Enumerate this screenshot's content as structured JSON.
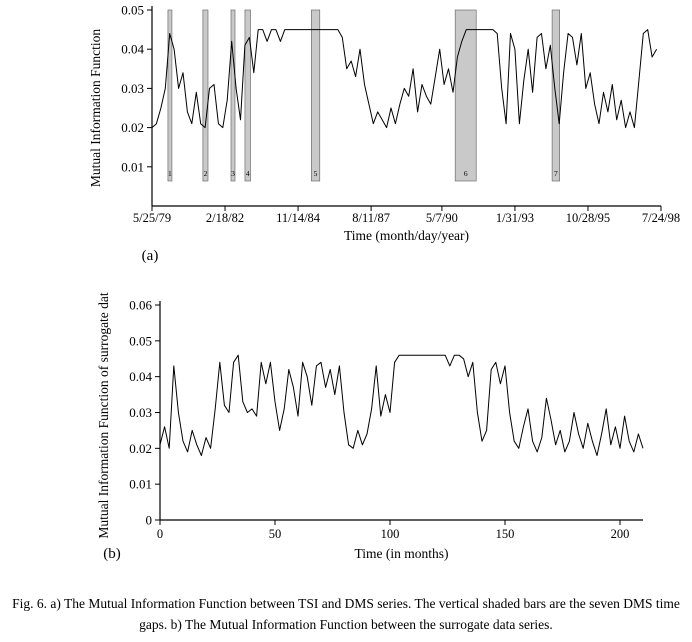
{
  "caption": {
    "text": "Fig. 6. a) The Mutual Information Function between TSI and DMS series. The vertical shaded bars are the seven DMS time gaps. b) The Mutual Information Function between the surrogate data series."
  },
  "chart_data": [
    {
      "type": "line",
      "panel_label": "(a)",
      "title": "",
      "ylabel": "Mutual Information Function",
      "xlabel": "Time (month/day/year)",
      "ylim": [
        0,
        0.05
      ],
      "xlim": [
        0,
        230
      ],
      "grid": false,
      "legend": "none",
      "line_color": "#000000",
      "bar_fill": "#c9c9c9",
      "bar_stroke": "#6e6e6e",
      "yticks": [
        0.01,
        0.02,
        0.03,
        0.04,
        0.05
      ],
      "ytick_labels": [
        "0.01",
        "0.02",
        "0.03",
        "0.04",
        "0.05"
      ],
      "xticks": [
        0,
        33,
        66,
        99,
        131,
        164,
        197,
        230
      ],
      "xtick_labels": [
        "5/25/79",
        "2/18/82",
        "11/14/84",
        "8/11/87",
        "5/7/90",
        "1/31/93",
        "10/28/95",
        "7/24/98"
      ],
      "x_start": 0,
      "x_step": 2,
      "values": [
        0.02,
        0.021,
        0.025,
        0.03,
        0.044,
        0.04,
        0.03,
        0.034,
        0.024,
        0.021,
        0.029,
        0.021,
        0.02,
        0.03,
        0.031,
        0.021,
        0.02,
        0.027,
        0.042,
        0.03,
        0.022,
        0.041,
        0.043,
        0.034,
        0.045,
        0.045,
        0.042,
        0.045,
        0.045,
        0.042,
        0.045,
        0.045,
        0.045,
        0.045,
        0.045,
        0.045,
        0.045,
        0.045,
        0.045,
        0.045,
        0.045,
        0.045,
        0.045,
        0.043,
        0.035,
        0.037,
        0.033,
        0.04,
        0.031,
        0.026,
        0.021,
        0.024,
        0.022,
        0.02,
        0.025,
        0.021,
        0.026,
        0.03,
        0.028,
        0.035,
        0.024,
        0.031,
        0.028,
        0.026,
        0.033,
        0.04,
        0.031,
        0.035,
        0.029,
        0.038,
        0.042,
        0.045,
        0.045,
        0.045,
        0.045,
        0.045,
        0.045,
        0.045,
        0.044,
        0.03,
        0.021,
        0.044,
        0.04,
        0.021,
        0.032,
        0.04,
        0.029,
        0.043,
        0.044,
        0.035,
        0.041,
        0.03,
        0.021,
        0.034,
        0.044,
        0.043,
        0.036,
        0.044,
        0.03,
        0.034,
        0.026,
        0.021,
        0.029,
        0.024,
        0.031,
        0.022,
        0.027,
        0.02,
        0.024,
        0.02,
        0.032,
        0.044,
        0.045,
        0.038,
        0.04
      ],
      "gap_bars": [
        {
          "x": 7.2,
          "width": 1.8,
          "label": "1"
        },
        {
          "x": 23.0,
          "width": 2.3,
          "label": "2"
        },
        {
          "x": 35.7,
          "width": 1.8,
          "label": "3"
        },
        {
          "x": 42.0,
          "width": 2.5,
          "label": "4"
        },
        {
          "x": 72.0,
          "width": 3.8,
          "label": "5"
        },
        {
          "x": 137.0,
          "width": 9.5,
          "label": "6"
        },
        {
          "x": 180.8,
          "width": 3.4,
          "label": "7"
        }
      ]
    },
    {
      "type": "line",
      "panel_label": "(b)",
      "title": "",
      "ylabel": "Mutual Information Function of surrogate data",
      "xlabel": "Time (in months)",
      "ylim": [
        0,
        0.06
      ],
      "xlim": [
        0,
        210
      ],
      "grid": false,
      "legend": "none",
      "line_color": "#000000",
      "yticks": [
        0,
        0.01,
        0.02,
        0.03,
        0.04,
        0.05,
        0.06
      ],
      "ytick_labels": [
        "0",
        "0.01",
        "0.02",
        "0.03",
        "0.04",
        "0.05",
        "0.06"
      ],
      "xticks": [
        0,
        50,
        100,
        150,
        200
      ],
      "xtick_labels": [
        "0",
        "50",
        "100",
        "150",
        "200"
      ],
      "x_start": 0,
      "x_step": 2,
      "values": [
        0.021,
        0.026,
        0.02,
        0.043,
        0.03,
        0.022,
        0.019,
        0.025,
        0.021,
        0.018,
        0.023,
        0.02,
        0.031,
        0.044,
        0.032,
        0.03,
        0.044,
        0.046,
        0.033,
        0.03,
        0.031,
        0.029,
        0.044,
        0.038,
        0.044,
        0.033,
        0.025,
        0.031,
        0.042,
        0.037,
        0.029,
        0.044,
        0.04,
        0.032,
        0.043,
        0.044,
        0.037,
        0.042,
        0.035,
        0.043,
        0.03,
        0.021,
        0.02,
        0.025,
        0.021,
        0.024,
        0.031,
        0.043,
        0.029,
        0.035,
        0.03,
        0.044,
        0.046,
        0.046,
        0.046,
        0.046,
        0.046,
        0.046,
        0.046,
        0.046,
        0.046,
        0.046,
        0.046,
        0.043,
        0.046,
        0.046,
        0.045,
        0.04,
        0.044,
        0.03,
        0.022,
        0.025,
        0.042,
        0.044,
        0.038,
        0.043,
        0.03,
        0.022,
        0.02,
        0.026,
        0.031,
        0.022,
        0.019,
        0.023,
        0.034,
        0.028,
        0.021,
        0.025,
        0.019,
        0.022,
        0.03,
        0.024,
        0.02,
        0.027,
        0.022,
        0.018,
        0.024,
        0.031,
        0.021,
        0.026,
        0.02,
        0.029,
        0.022,
        0.019,
        0.024,
        0.02
      ],
      "gap_bars": []
    }
  ]
}
